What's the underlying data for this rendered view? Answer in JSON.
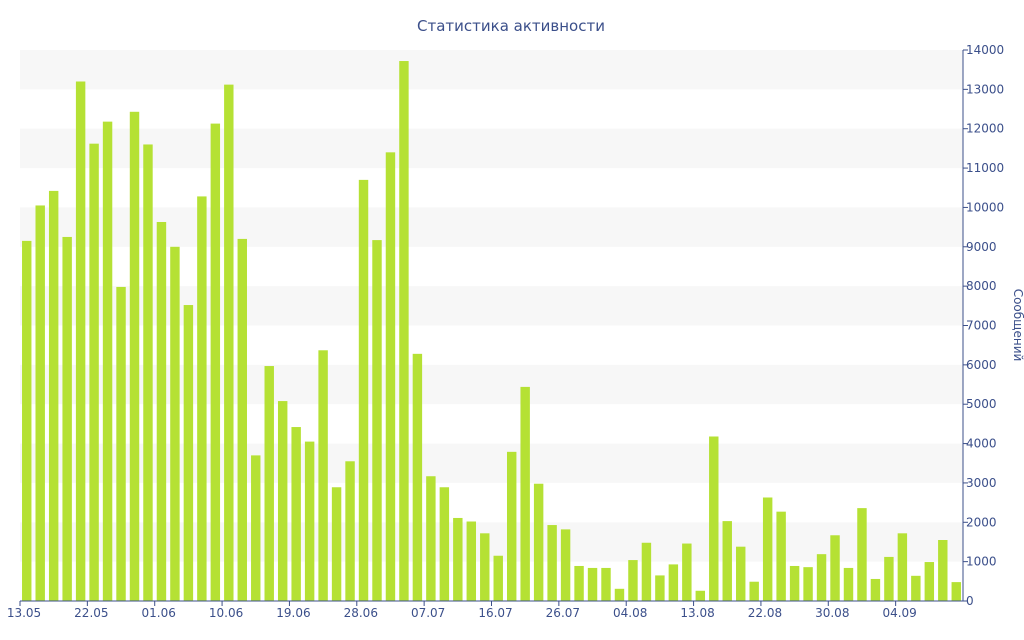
{
  "chart_data": {
    "type": "bar",
    "title": "Статистика активности",
    "xlabel": "",
    "ylabel": "Сообщений",
    "ylim": [
      0,
      14000
    ],
    "yticks": [
      0,
      1000,
      2000,
      3000,
      4000,
      5000,
      6000,
      7000,
      8000,
      9000,
      10000,
      11000,
      12000,
      13000,
      14000
    ],
    "y_axis_side": "right",
    "grid": "alternating horizontal bands",
    "bar_color": "#b5e134",
    "band_color": "#f7f7f7",
    "text_color": "#3b4f8a",
    "x_tick_labels": [
      {
        "index": 0,
        "label": "13.05"
      },
      {
        "index": 5,
        "label": "22.05"
      },
      {
        "index": 10,
        "label": "01.06"
      },
      {
        "index": 15,
        "label": "10.06"
      },
      {
        "index": 20,
        "label": "19.06"
      },
      {
        "index": 25,
        "label": "28.06"
      },
      {
        "index": 30,
        "label": "07.07"
      },
      {
        "index": 35,
        "label": "16.07"
      },
      {
        "index": 40,
        "label": "26.07"
      },
      {
        "index": 45,
        "label": "04.08"
      },
      {
        "index": 50,
        "label": "13.08"
      },
      {
        "index": 55,
        "label": "22.08"
      },
      {
        "index": 60,
        "label": "30.08"
      },
      {
        "index": 65,
        "label": "04.09"
      }
    ],
    "values": [
      9150,
      10050,
      10420,
      9250,
      13200,
      11620,
      12180,
      7980,
      12430,
      11600,
      9630,
      9000,
      7520,
      10280,
      12130,
      13120,
      9200,
      3700,
      5970,
      5080,
      4420,
      4050,
      6370,
      2890,
      3550,
      10700,
      9170,
      11400,
      13720,
      6280,
      3170,
      2890,
      2110,
      2020,
      1720,
      1150,
      3790,
      5440,
      2980,
      1930,
      1820,
      890,
      840,
      840,
      310,
      1040,
      1480,
      650,
      930,
      1460,
      260,
      4180,
      2030,
      1380,
      490,
      2630,
      2270,
      890,
      860,
      1190,
      1670,
      840,
      2360,
      560,
      1120,
      1720,
      640,
      990,
      1550,
      480
    ]
  }
}
